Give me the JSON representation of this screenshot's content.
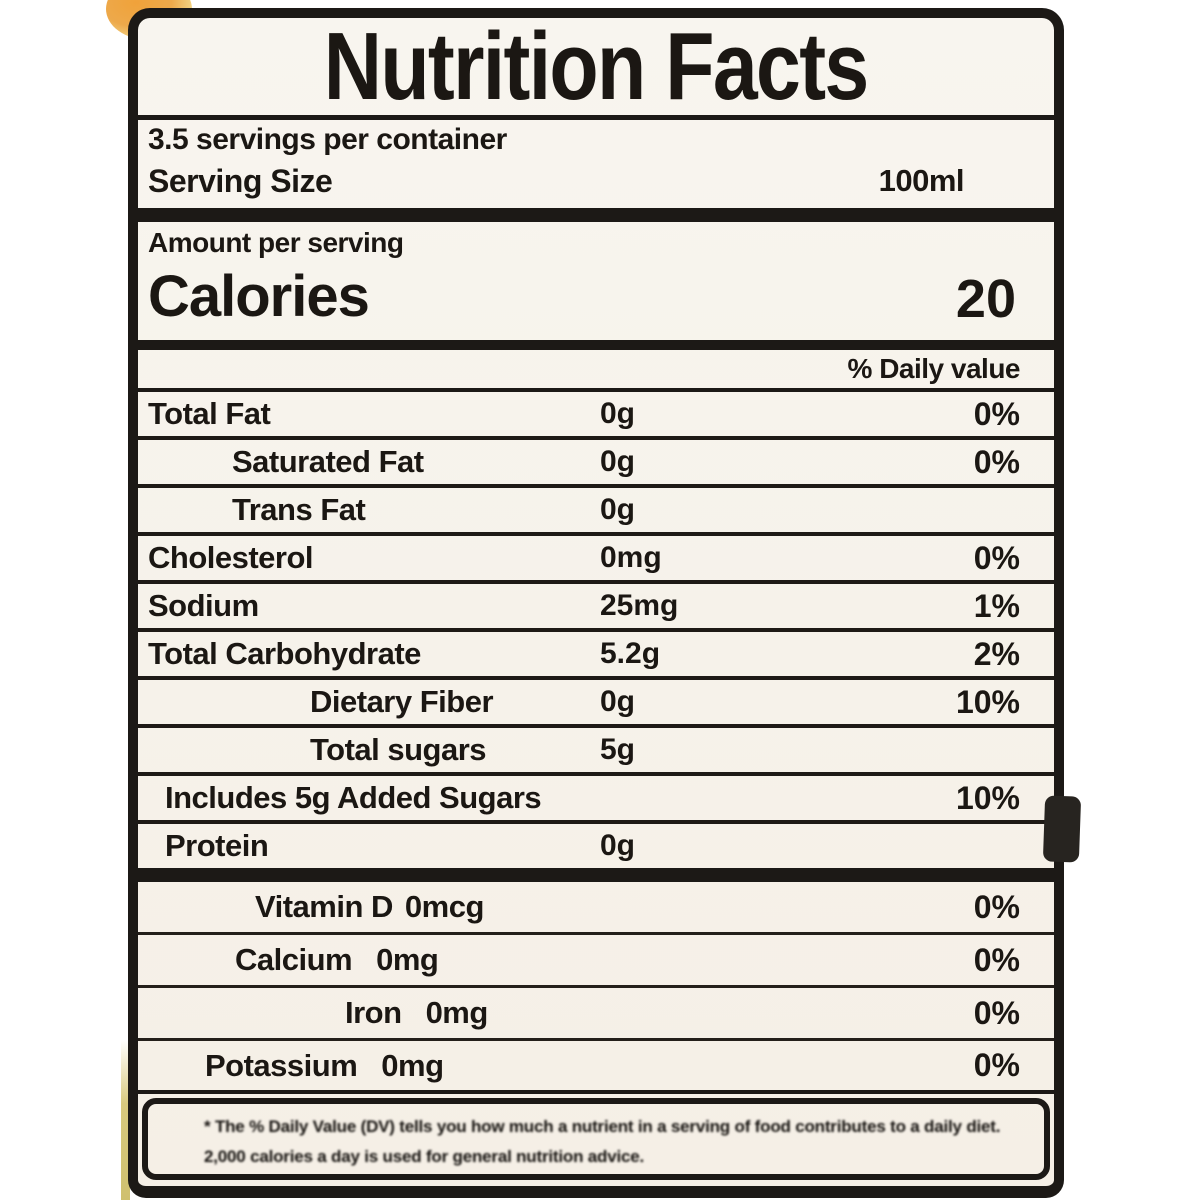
{
  "label": {
    "title": "Nutrition Facts",
    "servings_per_container": "3.5 servings per container",
    "serving_size": {
      "label": "Serving Size",
      "value": "100ml"
    },
    "amount_per_serving": "Amount per serving",
    "calories": {
      "label": "Calories",
      "value": "20"
    },
    "daily_value_header": "% Daily value",
    "nutrients": [
      {
        "name": "Total Fat",
        "amount": "0g",
        "dv": "0%",
        "indent": 0
      },
      {
        "name": "Saturated Fat",
        "amount": "0g",
        "dv": "0%",
        "indent": 1
      },
      {
        "name": "Trans Fat",
        "amount": "0g",
        "dv": "",
        "indent": 1
      },
      {
        "name": "Cholesterol",
        "amount": "0mg",
        "dv": "0%",
        "indent": 0
      },
      {
        "name": "Sodium",
        "amount": "25mg",
        "dv": "1%",
        "indent": 0
      },
      {
        "name": "Total Carbohydrate",
        "amount": "5.2g",
        "dv": "2%",
        "indent": 0
      },
      {
        "name": "Dietary Fiber",
        "amount": "0g",
        "dv": "10%",
        "indent": 2
      },
      {
        "name": "Total sugars",
        "amount": "5g",
        "dv": "",
        "indent": 2
      },
      {
        "name": "Includes 5g Added Sugars",
        "amount": "",
        "dv": "10%",
        "indent": 3
      },
      {
        "name": "Protein",
        "amount": "0g",
        "dv": "",
        "indent": 3
      }
    ],
    "micronutrients": [
      {
        "name": "Vitamin D",
        "amount": "0mcg",
        "dv": "0%"
      },
      {
        "name": "Calcium",
        "amount": "0mg",
        "dv": "0%"
      },
      {
        "name": "Iron",
        "amount": "0mg",
        "dv": "0%"
      },
      {
        "name": "Potassium",
        "amount": "0mg",
        "dv": "0%"
      }
    ],
    "footnote": "* The % Daily Value (DV) tells you how much a nutrient in a serving of food contributes to a daily diet. 2,000 calories a day is used for general nutrition advice.",
    "colors": {
      "ink": "#1b1713",
      "label_background": "#f7f3ec",
      "page_background": "#ffffff",
      "corner_orange": "#f0a23a",
      "edge_yellow": "#d8c97e"
    }
  }
}
